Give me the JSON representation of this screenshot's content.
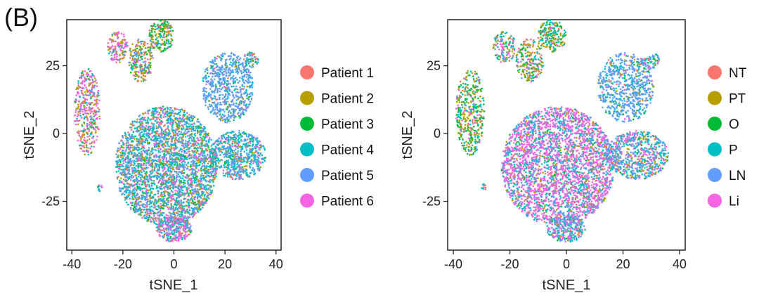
{
  "figure": {
    "panel_label": "(B)"
  },
  "chart_data": [
    {
      "type": "scatter",
      "title": "",
      "xlabel": "tSNE_1",
      "ylabel": "tSNE_2",
      "xlim": [
        -42,
        42
      ],
      "ylim": [
        -43,
        42
      ],
      "xticks": [
        -40,
        -20,
        0,
        20,
        40
      ],
      "xtick_labels": [
        "-40",
        "-20",
        "0",
        "20",
        "40"
      ],
      "yticks": [
        25,
        0,
        -25
      ],
      "ytick_labels": [
        "25",
        "0",
        "-25"
      ],
      "grid": false,
      "legend_position": "right",
      "series": [
        {
          "name": "Patient 1",
          "color": "#F8766D"
        },
        {
          "name": "Patient 2",
          "color": "#B79F00"
        },
        {
          "name": "Patient 3",
          "color": "#00BA38"
        },
        {
          "name": "Patient 4",
          "color": "#00BFC4"
        },
        {
          "name": "Patient 5",
          "color": "#619CFF"
        },
        {
          "name": "Patient 6",
          "color": "#F564E3"
        }
      ],
      "clusters": [
        {
          "label": "left_island",
          "cx": -34,
          "cy": 8,
          "rx": 5,
          "ry": 16,
          "n": 420,
          "mix": [
            0.08,
            0.25,
            0.05,
            0.12,
            0.05,
            0.45
          ]
        },
        {
          "label": "top_left_small",
          "cx": -22,
          "cy": 32,
          "rx": 4,
          "ry": 6,
          "n": 140,
          "mix": [
            0.05,
            0.2,
            0.05,
            0.1,
            0.1,
            0.5
          ]
        },
        {
          "label": "top_mid_a",
          "cx": -13,
          "cy": 27,
          "rx": 5,
          "ry": 8,
          "n": 220,
          "mix": [
            0.1,
            0.35,
            0.2,
            0.15,
            0.05,
            0.15
          ]
        },
        {
          "label": "top_mid_b",
          "cx": -5,
          "cy": 36,
          "rx": 5,
          "ry": 6,
          "n": 200,
          "mix": [
            0.1,
            0.3,
            0.35,
            0.15,
            0.05,
            0.05
          ]
        },
        {
          "label": "right_big",
          "cx": 21,
          "cy": 17,
          "rx": 10,
          "ry": 13,
          "n": 700,
          "mix": [
            0.03,
            0.04,
            0.04,
            0.15,
            0.7,
            0.04
          ]
        },
        {
          "label": "right_small",
          "cx": 30,
          "cy": 27,
          "rx": 3,
          "ry": 3,
          "n": 60,
          "mix": [
            0.1,
            0.1,
            0.1,
            0.3,
            0.3,
            0.1
          ]
        },
        {
          "label": "main_mass",
          "cx": -3,
          "cy": -12,
          "rx": 20,
          "ry": 22,
          "n": 3200,
          "mix": [
            0.06,
            0.12,
            0.08,
            0.34,
            0.24,
            0.16
          ]
        },
        {
          "label": "right_arm",
          "cx": 25,
          "cy": -8,
          "rx": 11,
          "ry": 9,
          "n": 700,
          "mix": [
            0.05,
            0.1,
            0.05,
            0.4,
            0.3,
            0.1
          ]
        },
        {
          "label": "bottom_tail",
          "cx": 0,
          "cy": -35,
          "rx": 7,
          "ry": 5,
          "n": 300,
          "mix": [
            0.05,
            0.1,
            0.05,
            0.25,
            0.2,
            0.35
          ]
        },
        {
          "label": "outlier_left",
          "cx": -29,
          "cy": -20,
          "rx": 1,
          "ry": 1.5,
          "n": 12,
          "mix": [
            0.1,
            0.1,
            0.1,
            0.3,
            0.3,
            0.1
          ]
        }
      ]
    },
    {
      "type": "scatter",
      "title": "",
      "xlabel": "tSNE_1",
      "ylabel": "tSNE_2",
      "xlim": [
        -42,
        42
      ],
      "ylim": [
        -43,
        42
      ],
      "xticks": [
        -40,
        -20,
        0,
        20,
        40
      ],
      "xtick_labels": [
        "-40",
        "-20",
        "0",
        "20",
        "40"
      ],
      "yticks": [
        25,
        0,
        -25
      ],
      "ytick_labels": [
        "25",
        "0",
        "-25"
      ],
      "grid": false,
      "legend_position": "right",
      "series": [
        {
          "name": "NT",
          "color": "#F8766D"
        },
        {
          "name": "PT",
          "color": "#B79F00"
        },
        {
          "name": "O",
          "color": "#00BA38"
        },
        {
          "name": "P",
          "color": "#00BFC4"
        },
        {
          "name": "LN",
          "color": "#619CFF"
        },
        {
          "name": "Li",
          "color": "#F564E3"
        }
      ],
      "clusters": [
        {
          "label": "left_island",
          "cx": -34,
          "cy": 8,
          "rx": 5,
          "ry": 16,
          "n": 420,
          "mix": [
            0.05,
            0.3,
            0.3,
            0.2,
            0.05,
            0.1
          ]
        },
        {
          "label": "top_left_small",
          "cx": -22,
          "cy": 32,
          "rx": 4,
          "ry": 6,
          "n": 140,
          "mix": [
            0.05,
            0.2,
            0.1,
            0.3,
            0.1,
            0.25
          ]
        },
        {
          "label": "top_mid_a",
          "cx": -13,
          "cy": 27,
          "rx": 5,
          "ry": 8,
          "n": 220,
          "mix": [
            0.05,
            0.35,
            0.2,
            0.2,
            0.05,
            0.15
          ]
        },
        {
          "label": "top_mid_b",
          "cx": -5,
          "cy": 36,
          "rx": 5,
          "ry": 6,
          "n": 200,
          "mix": [
            0.05,
            0.25,
            0.3,
            0.3,
            0.05,
            0.05
          ]
        },
        {
          "label": "right_big",
          "cx": 21,
          "cy": 17,
          "rx": 10,
          "ry": 13,
          "n": 700,
          "mix": [
            0.03,
            0.05,
            0.05,
            0.22,
            0.6,
            0.05
          ]
        },
        {
          "label": "right_small",
          "cx": 30,
          "cy": 27,
          "rx": 3,
          "ry": 3,
          "n": 60,
          "mix": [
            0.1,
            0.1,
            0.1,
            0.4,
            0.2,
            0.1
          ]
        },
        {
          "label": "main_mass",
          "cx": -3,
          "cy": -12,
          "rx": 20,
          "ry": 22,
          "n": 3200,
          "mix": [
            0.04,
            0.06,
            0.03,
            0.2,
            0.12,
            0.55
          ]
        },
        {
          "label": "right_arm",
          "cx": 25,
          "cy": -8,
          "rx": 11,
          "ry": 9,
          "n": 700,
          "mix": [
            0.04,
            0.1,
            0.04,
            0.3,
            0.3,
            0.22
          ]
        },
        {
          "label": "bottom_tail",
          "cx": 0,
          "cy": -35,
          "rx": 7,
          "ry": 5,
          "n": 300,
          "mix": [
            0.04,
            0.06,
            0.04,
            0.3,
            0.16,
            0.4
          ]
        },
        {
          "label": "outlier_left",
          "cx": -29,
          "cy": -20,
          "rx": 1,
          "ry": 1.5,
          "n": 12,
          "mix": [
            0.1,
            0.1,
            0.1,
            0.5,
            0.1,
            0.1
          ]
        }
      ]
    }
  ]
}
